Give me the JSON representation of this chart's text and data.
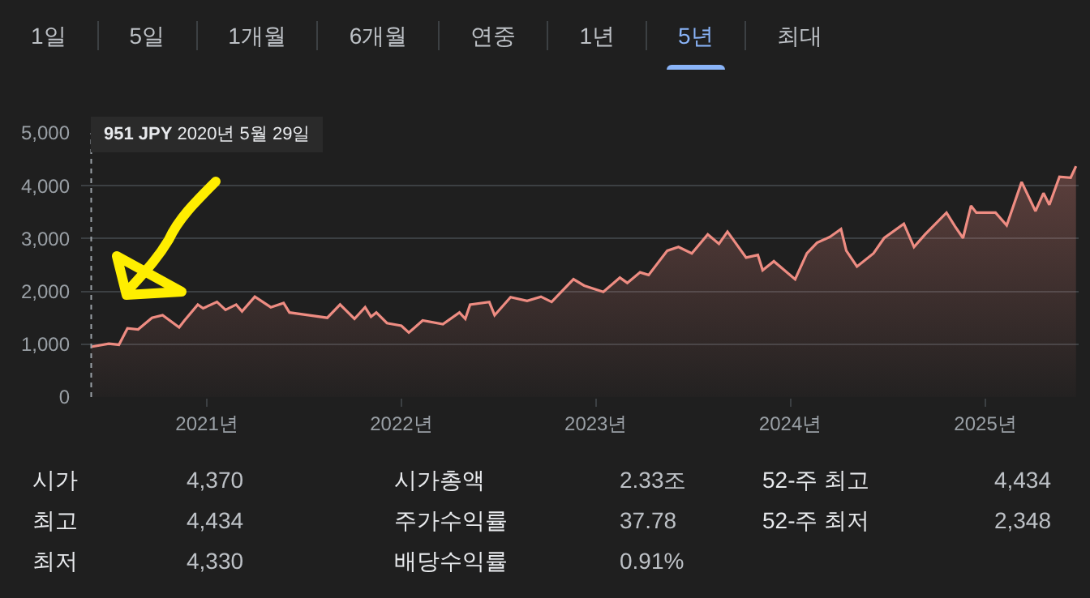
{
  "chart_data": {
    "type": "area",
    "series": [
      {
        "color": "#ee8c82",
        "x": [
          "2020-05-29",
          "2020-07-01",
          "2020-07-20",
          "2020-08-05",
          "2020-08-25",
          "2020-09-20",
          "2020-10-10",
          "2020-11-10",
          "2020-11-20",
          "2020-12-15",
          "2020-12-25",
          "2021-01-20",
          "2021-02-05",
          "2021-02-25",
          "2021-03-08",
          "2021-04-01",
          "2021-05-01",
          "2021-05-25",
          "2021-06-05",
          "2021-07-10",
          "2021-08-15",
          "2021-09-08",
          "2021-10-05",
          "2021-10-25",
          "2021-11-05",
          "2021-11-15",
          "2021-12-05",
          "2022-01-01",
          "2022-01-15",
          "2022-02-10",
          "2022-03-20",
          "2022-04-20",
          "2022-05-01",
          "2022-05-10",
          "2022-06-15",
          "2022-06-25",
          "2022-07-25",
          "2022-08-25",
          "2022-09-20",
          "2022-10-10",
          "2022-10-30",
          "2022-11-20",
          "2022-12-10",
          "2023-01-15",
          "2023-02-15",
          "2023-03-01",
          "2023-03-25",
          "2023-04-10",
          "2023-05-15",
          "2023-06-05",
          "2023-06-30",
          "2023-07-30",
          "2023-08-20",
          "2023-09-05",
          "2023-10-10",
          "2023-11-01",
          "2023-11-10",
          "2023-12-01",
          "2024-01-10",
          "2024-02-01",
          "2024-02-20",
          "2024-03-15",
          "2024-04-05",
          "2024-04-15",
          "2024-05-05",
          "2024-06-05",
          "2024-06-25",
          "2024-08-01",
          "2024-08-20",
          "2024-09-10",
          "2024-10-20",
          "2024-11-05",
          "2024-11-20",
          "2024-12-05",
          "2024-12-15",
          "2025-01-20",
          "2025-02-10",
          "2025-03-10",
          "2025-04-05",
          "2025-04-20",
          "2025-05-01",
          "2025-05-20",
          "2025-06-10",
          "2025-06-20"
        ],
        "values": [
          951,
          1010,
          990,
          1300,
          1280,
          1500,
          1550,
          1320,
          1450,
          1750,
          1680,
          1800,
          1650,
          1750,
          1620,
          1900,
          1700,
          1780,
          1600,
          1550,
          1500,
          1750,
          1480,
          1700,
          1520,
          1600,
          1400,
          1350,
          1220,
          1450,
          1380,
          1600,
          1480,
          1750,
          1800,
          1550,
          1890,
          1820,
          1900,
          1800,
          2010,
          2230,
          2110,
          1990,
          2260,
          2160,
          2360,
          2310,
          2770,
          2840,
          2720,
          3080,
          2900,
          3130,
          2640,
          2690,
          2400,
          2570,
          2230,
          2720,
          2920,
          3030,
          3180,
          2770,
          2470,
          2720,
          3010,
          3280,
          2840,
          3080,
          3490,
          3230,
          3010,
          3620,
          3490,
          3490,
          3250,
          4070,
          3520,
          3860,
          3640,
          4170,
          4150,
          4370
        ]
      }
    ],
    "xlim": [
      "2020-05-10",
      "2025-06-25"
    ],
    "xticks": [
      {
        "value": "2021-01-01",
        "label": "2021년"
      },
      {
        "value": "2022-01-01",
        "label": "2022년"
      },
      {
        "value": "2023-01-01",
        "label": "2023년"
      },
      {
        "value": "2024-01-01",
        "label": "2024년"
      },
      {
        "value": "2025-01-01",
        "label": "2025년"
      }
    ],
    "ylim": [
      0,
      5000
    ],
    "yticks": [
      0,
      {
        "value": 1000,
        "label": "1,000"
      },
      {
        "value": 2000,
        "label": "2,000"
      },
      {
        "value": 3000,
        "label": "3,000"
      },
      {
        "value": 4000,
        "label": "4,000"
      },
      {
        "value": 5000,
        "label": "5,000"
      }
    ],
    "grid": "y",
    "ref_lines": [
      {
        "axis": "x",
        "value": "2020-05-29",
        "line_style": "dotted",
        "color": "#9aa0a6"
      }
    ],
    "annotations": [
      "1일",
      "5일",
      "1개월",
      "6개월",
      "연중",
      "1년",
      "5년",
      "최대",
      "951 JPY  2020년 5월 29일",
      "시가",
      "4,370",
      "시가총액",
      "2.33조",
      "52-주 최고",
      "4,434",
      "최고",
      "4,434",
      "주가수익률",
      "37.78",
      "52-주 최저",
      "2,348",
      "최저",
      "4,330",
      "배당수익률",
      "0.91%"
    ]
  }
}
